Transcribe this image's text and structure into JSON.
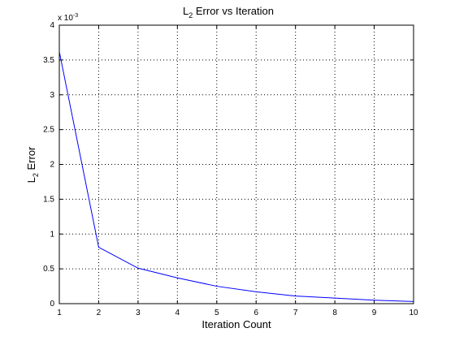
{
  "chart_data": {
    "type": "line",
    "title": {
      "main": "L",
      "sub": "2",
      "rest": " Error vs Iteration"
    },
    "xlabel": "Iteration Count",
    "ylabel": {
      "main": "L",
      "sub": "2",
      "rest": " Error"
    },
    "y_exponent": {
      "prefix": "x 10",
      "power": "-3"
    },
    "xlim": [
      1,
      10
    ],
    "ylim": [
      0,
      4
    ],
    "grid": true,
    "x_ticks": [
      1,
      2,
      3,
      4,
      5,
      6,
      7,
      8,
      9,
      10
    ],
    "y_ticks": [
      0,
      0.5,
      1,
      1.5,
      2,
      2.5,
      3,
      3.5,
      4
    ],
    "x_tick_labels": [
      "1",
      "2",
      "3",
      "4",
      "5",
      "6",
      "7",
      "8",
      "9",
      "10"
    ],
    "y_tick_labels": [
      "0",
      "0.5",
      "1",
      "1.5",
      "2",
      "2.5",
      "3",
      "3.5",
      "4"
    ],
    "series": [
      {
        "color": "#0000ff",
        "x": [
          1,
          2,
          3,
          4,
          5,
          6,
          7,
          8,
          9,
          10
        ],
        "y": [
          3.62,
          0.81,
          0.51,
          0.37,
          0.25,
          0.17,
          0.11,
          0.08,
          0.05,
          0.03
        ]
      }
    ]
  }
}
